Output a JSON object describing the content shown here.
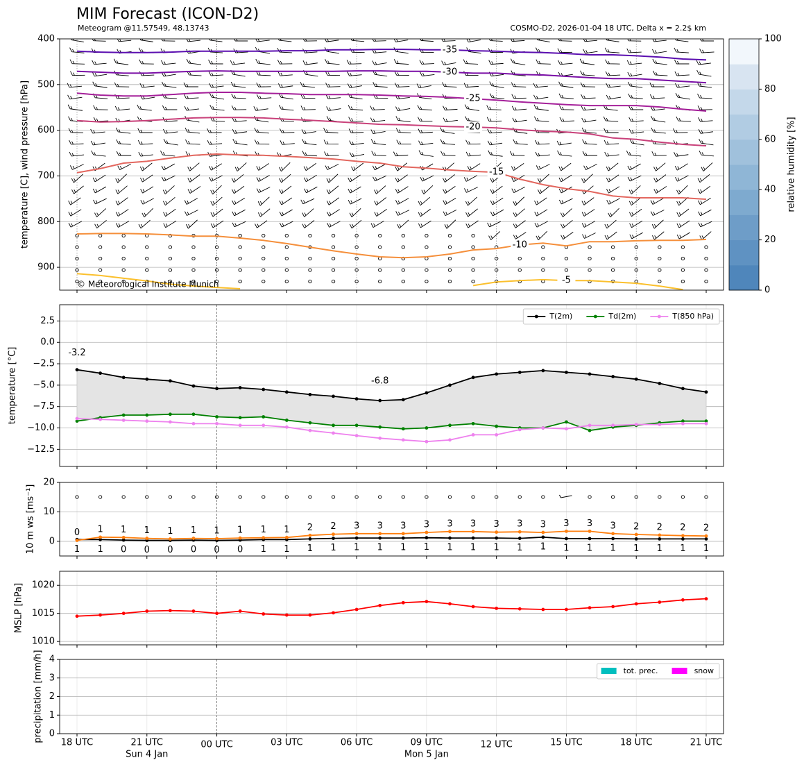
{
  "chart_data": [
    {
      "type": "contour",
      "title": "MIM Forecast (ICON-D2)",
      "subtitle": "Meteogram @11.57549, 48.13743",
      "source_note": "COSMO-D2, 2026-01-04 18 UTC, Delta x = 2.2$ km",
      "copyright": "© Meteorological Institute Munich",
      "ylabel": "temperature [C], wind pressure [hPa]",
      "ylim": [
        400,
        950
      ],
      "y_inverted": true,
      "yticks": [
        400,
        500,
        600,
        700,
        800,
        900
      ],
      "grid": true,
      "contours": [
        {
          "level": -35,
          "color": "#5b0fb0",
          "values": [
            427,
            429,
            430,
            430,
            429,
            427,
            427,
            427,
            427,
            426,
            426,
            424,
            424,
            423,
            423,
            424,
            424,
            426,
            427,
            429,
            430,
            432,
            435,
            435,
            437,
            440,
            444,
            446
          ]
        },
        {
          "level": -30,
          "color": "#7a0ea6",
          "values": [
            471,
            473,
            475,
            475,
            473,
            471,
            470,
            471,
            471,
            471,
            471,
            471,
            470,
            470,
            471,
            471,
            473,
            475,
            475,
            478,
            479,
            482,
            485,
            487,
            487,
            490,
            493,
            496
          ]
        },
        {
          "level": -25,
          "color": "#a5209a",
          "values": [
            519,
            523,
            525,
            525,
            522,
            519,
            517,
            517,
            519,
            520,
            522,
            522,
            522,
            523,
            525,
            526,
            528,
            531,
            534,
            538,
            541,
            544,
            546,
            546,
            546,
            549,
            554,
            558
          ]
        },
        {
          "level": -20,
          "color": "#c9417a",
          "values": [
            579,
            582,
            581,
            579,
            576,
            573,
            572,
            572,
            573,
            576,
            578,
            581,
            584,
            587,
            588,
            590,
            592,
            593,
            595,
            599,
            602,
            604,
            608,
            617,
            620,
            626,
            631,
            634
          ]
        },
        {
          "level": -15,
          "color": "#e3675f",
          "values": [
            693,
            684,
            672,
            668,
            661,
            655,
            652,
            654,
            655,
            657,
            660,
            663,
            668,
            672,
            680,
            683,
            687,
            690,
            692,
            707,
            719,
            728,
            734,
            744,
            748,
            748,
            748,
            751
          ]
        },
        {
          "level": -10,
          "color": "#f58f3b",
          "values": [
            827,
            826,
            826,
            827,
            829,
            832,
            832,
            836,
            841,
            848,
            856,
            864,
            871,
            877,
            879,
            877,
            871,
            862,
            859,
            851,
            847,
            853,
            844,
            844,
            842,
            841,
            841,
            839
          ]
        },
        {
          "level": -5,
          "color": "#fbc02d",
          "values": [
            914,
            918,
            924,
            930,
            937,
            941,
            944,
            947,
            null,
            null,
            null,
            null,
            null,
            null,
            null,
            null,
            null,
            940,
            932,
            929,
            927,
            929,
            929,
            932,
            935,
            941,
            949,
            null
          ]
        }
      ],
      "colorbar": {
        "label": "relative humidity [%]",
        "lim": [
          0,
          100
        ],
        "ticks": [
          0,
          20,
          40,
          60,
          80,
          100
        ],
        "colors": [
          "#4f86bb",
          "#5f92c2",
          "#6e9dc8",
          "#7eaacf",
          "#8fb6d6",
          "#a0c1dc",
          "#b1cce3",
          "#c4d8ea",
          "#d8e4f1",
          "#f2f7fc"
        ]
      }
    },
    {
      "type": "line",
      "ylabel": "temperature [°C]",
      "ylim": [
        -14.5,
        4.4
      ],
      "yticks": [
        2.5,
        {
          "value": 0,
          "label": "0.0"
        },
        {
          "value": -2.5,
          "label": "−2.5"
        },
        {
          "value": -5,
          "label": "−5.0"
        },
        {
          "value": -7.5,
          "label": "−7.5"
        },
        {
          "value": -10,
          "label": "−10.0"
        },
        {
          "value": -12.5,
          "label": "−12.5"
        }
      ],
      "grid": true,
      "legend": "upper right",
      "markers": true,
      "fill_between": true,
      "series": [
        {
          "name": "T(2m)",
          "color": "#000000",
          "values": [
            -3.2,
            -3.6,
            -4.1,
            -4.3,
            -4.5,
            -5.1,
            -5.4,
            -5.3,
            -5.5,
            -5.8,
            -6.1,
            -6.3,
            -6.6,
            -6.8,
            -6.7,
            -5.9,
            -5.0,
            -4.1,
            -3.7,
            -3.5,
            -3.3,
            -3.5,
            -3.7,
            -4.0,
            -4.3,
            -4.8,
            -5.4,
            -5.8
          ]
        },
        {
          "name": "Td(2m)",
          "color": "#008000",
          "values": [
            -9.2,
            -8.8,
            -8.5,
            -8.5,
            -8.4,
            -8.4,
            -8.7,
            -8.8,
            -8.7,
            -9.1,
            -9.4,
            -9.7,
            -9.7,
            -9.9,
            -10.1,
            -10.0,
            -9.7,
            -9.5,
            -9.8,
            -10.0,
            -10.0,
            -9.3,
            -10.3,
            -9.9,
            -9.7,
            -9.4,
            -9.2,
            -9.2
          ]
        },
        {
          "name": "T(850 hPa)",
          "color": "#ee82ee",
          "values": [
            -8.9,
            -9.0,
            -9.1,
            -9.2,
            -9.3,
            -9.5,
            -9.5,
            -9.7,
            -9.7,
            -9.9,
            -10.3,
            -10.6,
            -10.9,
            -11.2,
            -11.4,
            -11.6,
            -11.4,
            -10.8,
            -10.8,
            -10.2,
            -10.0,
            -10.1,
            -9.7,
            -9.7,
            -9.6,
            -9.6,
            -9.5,
            -9.5
          ]
        }
      ],
      "annotations": [
        {
          "text": "-3.2",
          "color": "#ff0000"
        },
        {
          "text": "-6.8",
          "color": "#0000ff"
        }
      ]
    },
    {
      "type": "line",
      "ylabel": "10 m ws [ms⁻¹]",
      "ylim": [
        -5,
        20
      ],
      "yticks": [
        0,
        10,
        20
      ],
      "grid": true,
      "markers": true,
      "series": [
        {
          "color": "#000000",
          "values": [
            0.6,
            0.6,
            0.4,
            0.3,
            0.3,
            0.4,
            0.3,
            0.4,
            0.6,
            0.6,
            0.8,
            1.0,
            1.1,
            1.1,
            1.1,
            1.2,
            1.1,
            1.1,
            1.1,
            1.0,
            1.4,
            0.9,
            0.9,
            0.9,
            0.8,
            0.8,
            0.8,
            0.8
          ],
          "value_labels": [
            "1",
            "1",
            "0",
            "0",
            "0",
            "0",
            "0",
            "0",
            "1",
            "1",
            "1",
            "1",
            "1",
            "1",
            "1",
            "1",
            "1",
            "1",
            "1",
            "1",
            "1",
            "1",
            "1",
            "1",
            "1",
            "1",
            "1",
            "1"
          ]
        },
        {
          "color": "#ff7f0e",
          "values": [
            0.3,
            1.4,
            1.3,
            1.0,
            0.8,
            1.0,
            0.9,
            1.1,
            1.2,
            1.3,
            2.0,
            2.4,
            2.6,
            2.6,
            2.6,
            3.0,
            3.3,
            3.3,
            3.1,
            3.2,
            3.0,
            3.4,
            3.4,
            2.6,
            2.3,
            2.1,
            1.9,
            1.8
          ],
          "value_labels": [
            "0",
            "1",
            "1",
            "1",
            "1",
            "1",
            "1",
            "1",
            "1",
            "1",
            "2",
            "2",
            "3",
            "3",
            "3",
            "3",
            "3",
            "3",
            "3",
            "3",
            "3",
            "3",
            "3",
            "3",
            "2",
            "2",
            "2",
            "2"
          ]
        }
      ]
    },
    {
      "type": "line",
      "ylabel": "MSLP [hPa]",
      "ylim": [
        1009.4,
        1022.5
      ],
      "yticks": [
        1010,
        1015,
        1020
      ],
      "grid": true,
      "markers": true,
      "series": [
        {
          "color": "#ff0000",
          "values": [
            1014.5,
            1014.7,
            1015.0,
            1015.4,
            1015.5,
            1015.4,
            1015.0,
            1015.4,
            1014.9,
            1014.7,
            1014.7,
            1015.1,
            1015.7,
            1016.4,
            1016.9,
            1017.1,
            1016.7,
            1016.2,
            1015.9,
            1015.8,
            1015.7,
            1015.7,
            1016.0,
            1016.2,
            1016.7,
            1017.0,
            1017.4,
            1017.6
          ]
        }
      ]
    },
    {
      "type": "bar",
      "ylabel": "precipitation [mm/h]",
      "ylim": [
        0,
        4
      ],
      "yticks": [
        0,
        1,
        2,
        3,
        4
      ],
      "grid": true,
      "legend": "upper right",
      "categories": [
        "18 UTC",
        null,
        null,
        "21 UTC",
        null,
        null,
        "00 UTC",
        null,
        null,
        "03 UTC",
        null,
        null,
        "06 UTC",
        null,
        null,
        "09 UTC",
        null,
        null,
        "12 UTC",
        null,
        null,
        "15 UTC",
        null,
        null,
        "18 UTC",
        null,
        null,
        "21 UTC"
      ],
      "day_labels": [
        null,
        null,
        null,
        "Sun 4 Jan",
        null,
        null,
        null,
        null,
        null,
        null,
        null,
        null,
        null,
        null,
        null,
        "Mon 5 Jan",
        null,
        null,
        null,
        null,
        null,
        null,
        null,
        null,
        null,
        null,
        null,
        null
      ],
      "series": [
        {
          "name": "tot. prec.",
          "color": "#00bfbf",
          "values": [
            0,
            0,
            0,
            0,
            0,
            0,
            0,
            0,
            0,
            0,
            0,
            0,
            0,
            0,
            0,
            0,
            0,
            0,
            0,
            0,
            0,
            0,
            0,
            0,
            0,
            0,
            0,
            0
          ]
        },
        {
          "name": "snow",
          "color": "#ff00ff",
          "values": [
            0,
            0,
            0,
            0,
            0,
            0,
            0,
            0,
            0,
            0,
            0,
            0,
            0,
            0,
            0,
            0,
            0,
            0,
            0,
            0,
            0,
            0,
            0,
            0,
            0,
            0,
            0,
            0
          ]
        }
      ]
    }
  ]
}
